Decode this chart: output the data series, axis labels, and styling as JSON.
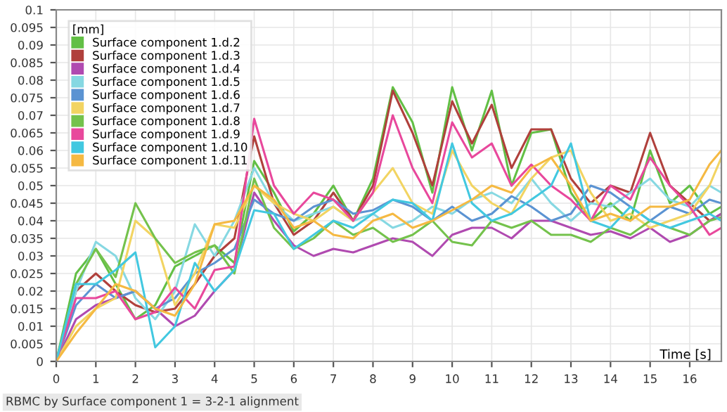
{
  "chart_data": {
    "type": "line",
    "xlabel": "Time [s]",
    "legend_title": "[mm]",
    "annotations": [
      "RBMC by Surface component 1 = 3-2-1 alignment"
    ],
    "x": [
      0,
      0.5,
      1,
      1.5,
      2,
      2.5,
      3,
      3.5,
      4,
      4.5,
      5,
      5.5,
      6,
      6.5,
      7,
      7.5,
      8,
      8.5,
      9,
      9.5,
      10,
      10.5,
      11,
      11.5,
      12,
      12.5,
      13,
      13.5,
      14,
      14.5,
      15,
      15.5,
      16,
      16.5,
      16.8
    ],
    "series": [
      {
        "name": "Surface component 1.d.2",
        "color": "#62bf45",
        "values": [
          0,
          0.025,
          0.032,
          0.022,
          0.012,
          0.016,
          0.027,
          0.03,
          0.033,
          0.028,
          0.057,
          0.048,
          0.037,
          0.042,
          0.05,
          0.04,
          0.052,
          0.078,
          0.068,
          0.048,
          0.078,
          0.06,
          0.077,
          0.05,
          0.065,
          0.066,
          0.048,
          0.04,
          0.045,
          0.04,
          0.06,
          0.045,
          0.05,
          0.042,
          0.044
        ]
      },
      {
        "name": "Surface component 1.d.3",
        "color": "#b0403c",
        "values": [
          0,
          0.02,
          0.025,
          0.02,
          0.016,
          0.014,
          0.015,
          0.022,
          0.03,
          0.035,
          0.064,
          0.045,
          0.036,
          0.04,
          0.048,
          0.04,
          0.05,
          0.077,
          0.065,
          0.05,
          0.074,
          0.062,
          0.073,
          0.055,
          0.066,
          0.066,
          0.052,
          0.045,
          0.05,
          0.048,
          0.065,
          0.05,
          0.045,
          0.04,
          0.042
        ]
      },
      {
        "name": "Surface component 1.d.4",
        "color": "#b04ab0",
        "values": [
          0,
          0.012,
          0.016,
          0.018,
          0.02,
          0.015,
          0.01,
          0.013,
          0.02,
          0.026,
          0.048,
          0.04,
          0.033,
          0.03,
          0.032,
          0.031,
          0.033,
          0.035,
          0.034,
          0.03,
          0.036,
          0.038,
          0.038,
          0.035,
          0.04,
          0.04,
          0.038,
          0.036,
          0.037,
          0.035,
          0.038,
          0.034,
          0.036,
          0.04,
          0.042
        ]
      },
      {
        "name": "Surface component 1.d.5",
        "color": "#86d8e2",
        "values": [
          0,
          0.02,
          0.034,
          0.03,
          0.018,
          0.012,
          0.02,
          0.039,
          0.03,
          0.04,
          0.055,
          0.045,
          0.04,
          0.042,
          0.044,
          0.04,
          0.042,
          0.038,
          0.04,
          0.044,
          0.042,
          0.046,
          0.048,
          0.045,
          0.052,
          0.045,
          0.04,
          0.045,
          0.044,
          0.048,
          0.052,
          0.046,
          0.044,
          0.05,
          0.048
        ]
      },
      {
        "name": "Surface component 1.d.6",
        "color": "#5b93d2",
        "values": [
          0,
          0.016,
          0.022,
          0.018,
          0.02,
          0.015,
          0.018,
          0.025,
          0.028,
          0.032,
          0.046,
          0.042,
          0.04,
          0.044,
          0.046,
          0.042,
          0.043,
          0.046,
          0.044,
          0.04,
          0.044,
          0.04,
          0.042,
          0.047,
          0.044,
          0.04,
          0.042,
          0.05,
          0.048,
          0.044,
          0.04,
          0.044,
          0.042,
          0.046,
          0.045
        ]
      },
      {
        "name": "Surface component 1.d.7",
        "color": "#f2d462",
        "values": [
          0,
          0.01,
          0.015,
          0.018,
          0.04,
          0.035,
          0.016,
          0.025,
          0.039,
          0.038,
          0.05,
          0.045,
          0.042,
          0.04,
          0.044,
          0.04,
          0.048,
          0.055,
          0.045,
          0.042,
          0.06,
          0.05,
          0.045,
          0.042,
          0.052,
          0.058,
          0.06,
          0.048,
          0.04,
          0.042,
          0.038,
          0.04,
          0.042,
          0.05,
          0.058
        ]
      },
      {
        "name": "Surface component 1.d.8",
        "color": "#74c24c",
        "values": [
          0,
          0.022,
          0.032,
          0.024,
          0.045,
          0.035,
          0.028,
          0.031,
          0.033,
          0.025,
          0.052,
          0.038,
          0.032,
          0.035,
          0.04,
          0.036,
          0.038,
          0.034,
          0.036,
          0.04,
          0.034,
          0.033,
          0.04,
          0.038,
          0.04,
          0.036,
          0.036,
          0.034,
          0.038,
          0.036,
          0.04,
          0.038,
          0.036,
          0.04,
          0.041
        ]
      },
      {
        "name": "Surface component 1.d.9",
        "color": "#e8489c",
        "values": [
          0,
          0.018,
          0.018,
          0.02,
          0.012,
          0.014,
          0.021,
          0.015,
          0.026,
          0.027,
          0.069,
          0.05,
          0.042,
          0.048,
          0.046,
          0.04,
          0.048,
          0.07,
          0.055,
          0.045,
          0.068,
          0.058,
          0.062,
          0.05,
          0.056,
          0.05,
          0.046,
          0.04,
          0.05,
          0.046,
          0.058,
          0.05,
          0.044,
          0.036,
          0.038
        ]
      },
      {
        "name": "Surface component 1.d.10",
        "color": "#42c8e0",
        "values": [
          0,
          0.022,
          0.022,
          0.026,
          0.031,
          0.004,
          0.01,
          0.028,
          0.02,
          0.026,
          0.043,
          0.042,
          0.032,
          0.036,
          0.04,
          0.038,
          0.042,
          0.046,
          0.045,
          0.04,
          0.062,
          0.045,
          0.04,
          0.042,
          0.046,
          0.05,
          0.062,
          0.04,
          0.038,
          0.044,
          0.04,
          0.038,
          0.04,
          0.042,
          0.04
        ]
      },
      {
        "name": "Surface component 1.d.11",
        "color": "#f5b942",
        "values": [
          0,
          0.008,
          0.015,
          0.022,
          0.02,
          0.015,
          0.013,
          0.022,
          0.039,
          0.04,
          0.05,
          0.046,
          0.038,
          0.04,
          0.036,
          0.035,
          0.04,
          0.042,
          0.038,
          0.04,
          0.043,
          0.046,
          0.05,
          0.048,
          0.055,
          0.058,
          0.05,
          0.04,
          0.042,
          0.04,
          0.044,
          0.044,
          0.046,
          0.056,
          0.06
        ]
      }
    ],
    "xlim": [
      0,
      16.8
    ],
    "xticks": [
      0,
      1,
      2,
      3,
      4,
      5,
      6,
      7,
      8,
      9,
      10,
      11,
      12,
      13,
      14,
      15,
      16
    ],
    "ylim": [
      0,
      0.1
    ],
    "yticks": [
      0,
      0.005,
      0.01,
      0.015,
      0.02,
      0.025,
      0.03,
      0.035,
      0.04,
      0.045,
      0.05,
      0.055,
      0.06,
      0.065,
      0.07,
      0.075,
      0.08,
      0.085,
      0.09,
      0.095,
      0.1
    ],
    "grid": true,
    "legend": "top left",
    "marker": "none",
    "line_style": "solid"
  }
}
